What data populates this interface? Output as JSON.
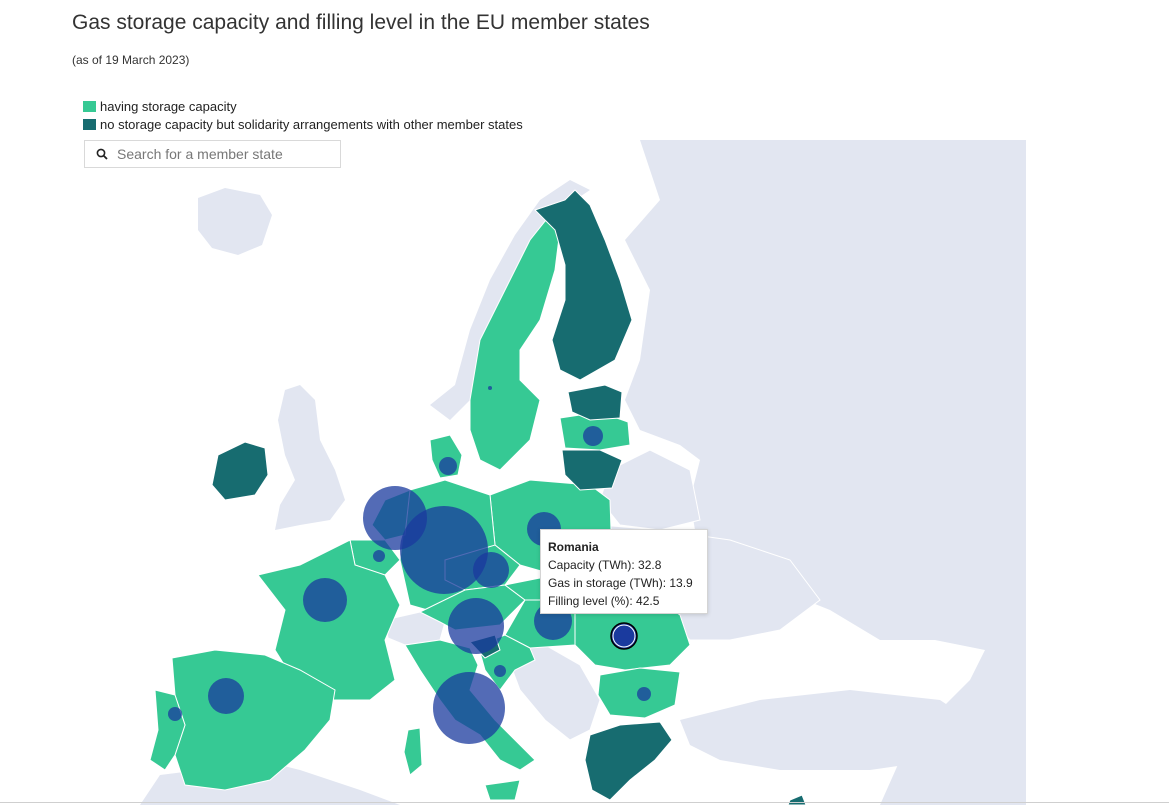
{
  "title": "Gas storage capacity and filling level in the EU member states",
  "subtitle": "(as of 19 March 2023)",
  "legend": {
    "items": [
      {
        "label": "having storage capacity",
        "color": "#36c994"
      },
      {
        "label": "no storage capacity but solidarity arrangements with other member states",
        "color": "#176c70"
      }
    ]
  },
  "search": {
    "placeholder": "Search for a member state",
    "value": ""
  },
  "colors": {
    "storage": "#36c994",
    "no_storage": "#176c70",
    "non_eu": "#e2e6f1",
    "bubble": "#1a3a9e",
    "sea": "#ffffff"
  },
  "tooltip": {
    "country": "Romania",
    "capacity_label": "Capacity (TWh)",
    "capacity_value": "32.8",
    "storage_label": "Gas in storage (TWh)",
    "storage_value": "13.9",
    "filling_label": "Filling level (%)",
    "filling_value": "42.5"
  }
}
